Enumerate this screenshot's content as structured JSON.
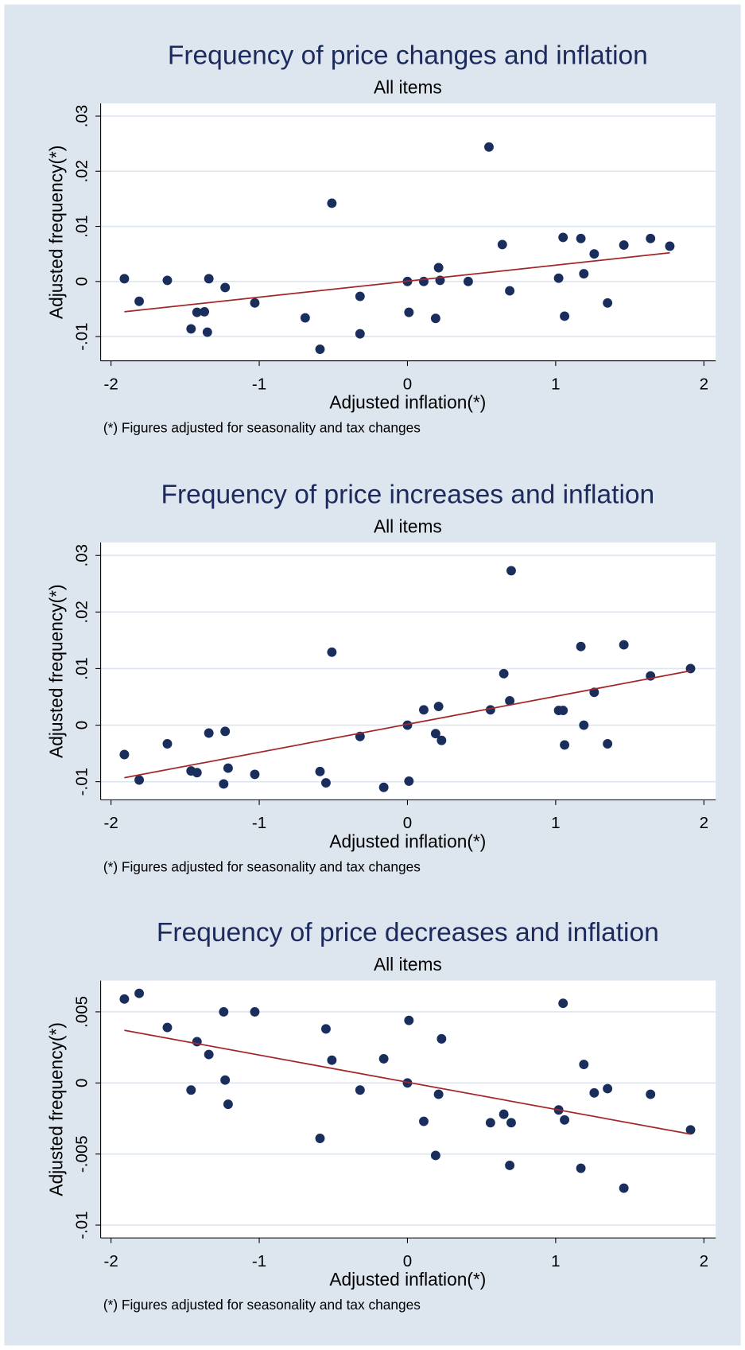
{
  "chart_data": [
    {
      "type": "scatter",
      "title": "Frequency of price changes and inflation",
      "subtitle": "All items",
      "xlabel": "Adjusted inflation(*)",
      "ylabel": "Adjusted frequency(*)",
      "note": "(*) Figures adjusted for seasonality and tax changes",
      "xlim": [
        -2.07,
        2.08
      ],
      "ylim": [
        -0.0144,
        0.0323
      ],
      "xticks": [
        -2,
        -1,
        0,
        1,
        2
      ],
      "yticks": [
        {
          "value": 0.03,
          "label": ".03"
        },
        {
          "value": 0.02,
          "label": ".02"
        },
        {
          "value": 0.01,
          "label": ".01"
        },
        0,
        {
          "value": -0.01,
          "label": "-.01"
        }
      ],
      "grid": true,
      "color": "#1a2e5e",
      "fit_color": "#a3272a",
      "x": [
        -1.91,
        -1.81,
        -1.62,
        -1.34,
        -1.23,
        -1.46,
        -1.42,
        -1.37,
        -1.35,
        -1.03,
        -0.69,
        -0.59,
        -0.51,
        -0.32,
        -0.32,
        0.0,
        0.01,
        0.11,
        0.19,
        0.21,
        0.22,
        0.41,
        0.55,
        0.64,
        0.69,
        1.02,
        1.05,
        1.06,
        1.17,
        1.19,
        1.26,
        1.35,
        1.46,
        1.64,
        1.77
      ],
      "values": [
        0.0005,
        -0.0036,
        0.0002,
        0.0005,
        -0.0011,
        -0.0086,
        -0.0056,
        -0.0055,
        -0.0092,
        -0.0039,
        -0.0066,
        -0.0123,
        0.0142,
        -0.0027,
        -0.0095,
        0.0,
        -0.0056,
        0.0,
        -0.0067,
        0.0025,
        0.0002,
        0.0,
        0.0244,
        0.0067,
        -0.0017,
        0.0006,
        0.008,
        -0.0063,
        0.0078,
        0.0014,
        0.005,
        -0.0039,
        0.0066,
        0.0078,
        0.0064
      ],
      "fit": {
        "x": [
          -1.91,
          1.77
        ],
        "values": [
          -0.0055,
          0.0052
        ]
      }
    },
    {
      "type": "scatter",
      "title": "Frequency of price increases and inflation",
      "subtitle": "All items",
      "xlabel": "Adjusted inflation(*)",
      "ylabel": "Adjusted frequency(*)",
      "note": "(*) Figures adjusted for seasonality and tax changes",
      "xlim": [
        -2.07,
        2.08
      ],
      "ylim": [
        -0.0132,
        0.0323
      ],
      "xticks": [
        -2,
        -1,
        0,
        1,
        2
      ],
      "yticks": [
        {
          "value": 0.03,
          "label": ".03"
        },
        {
          "value": 0.02,
          "label": ".02"
        },
        {
          "value": 0.01,
          "label": ".01"
        },
        0,
        {
          "value": -0.01,
          "label": "-.01"
        }
      ],
      "grid": true,
      "color": "#1a2e5e",
      "fit_color": "#a3272a",
      "x": [
        -1.91,
        -1.81,
        -1.62,
        -1.46,
        -1.42,
        -1.34,
        -1.24,
        -1.23,
        -1.21,
        -1.03,
        -0.59,
        -0.55,
        -0.51,
        -0.32,
        -0.16,
        0.0,
        0.01,
        0.11,
        0.19,
        0.21,
        0.23,
        0.56,
        0.65,
        0.69,
        0.7,
        1.02,
        1.05,
        1.06,
        1.17,
        1.19,
        1.26,
        1.35,
        1.46,
        1.64,
        1.91
      ],
      "values": [
        -0.0052,
        -0.0097,
        -0.0033,
        -0.0081,
        -0.0084,
        -0.0014,
        -0.0104,
        -0.0011,
        -0.0076,
        -0.0087,
        -0.0082,
        -0.0102,
        0.0129,
        -0.002,
        -0.011,
        0.0,
        -0.0099,
        0.0027,
        -0.0015,
        0.0033,
        -0.0027,
        0.0027,
        0.0091,
        0.0043,
        0.0273,
        0.0026,
        0.0026,
        -0.0035,
        0.0139,
        0.0,
        0.0058,
        -0.0033,
        0.0142,
        0.0087,
        0.01
      ],
      "fit": {
        "x": [
          -1.91,
          1.91
        ],
        "values": [
          -0.0093,
          0.0096
        ]
      }
    },
    {
      "type": "scatter",
      "title": "Frequency of price decreases and inflation",
      "subtitle": "All items",
      "xlabel": "Adjusted inflation(*)",
      "ylabel": "Adjusted frequency(*)",
      "note": "(*) Figures adjusted for seasonality and tax changes",
      "xlim": [
        -2.07,
        2.08
      ],
      "ylim": [
        -0.0109,
        0.0072
      ],
      "xticks": [
        -2,
        -1,
        0,
        1,
        2
      ],
      "yticks": [
        {
          "value": 0.005,
          "label": ".005"
        },
        0,
        {
          "value": -0.005,
          "label": "-.005"
        },
        {
          "value": -0.01,
          "label": "-.01"
        }
      ],
      "grid": true,
      "color": "#1a2e5e",
      "fit_color": "#a3272a",
      "x": [
        -1.91,
        -1.81,
        -1.62,
        -1.46,
        -1.42,
        -1.34,
        -1.24,
        -1.23,
        -1.21,
        -1.03,
        -0.59,
        -0.55,
        -0.51,
        -0.32,
        -0.16,
        0.01,
        0.0,
        0.11,
        0.19,
        0.21,
        0.23,
        0.56,
        0.65,
        0.69,
        0.7,
        1.02,
        1.05,
        1.06,
        1.17,
        1.19,
        1.26,
        1.35,
        1.46,
        1.64,
        1.91
      ],
      "values": [
        0.0059,
        0.0063,
        0.0039,
        -0.0005,
        0.0029,
        0.002,
        0.005,
        0.0002,
        -0.0015,
        0.005,
        -0.0039,
        0.0038,
        0.0016,
        -0.0005,
        0.0017,
        0.0044,
        0.0,
        -0.0027,
        -0.0051,
        -0.0008,
        0.0031,
        -0.0028,
        -0.0022,
        -0.0058,
        -0.0028,
        -0.0019,
        0.0056,
        -0.0026,
        -0.006,
        0.0013,
        -0.0007,
        -0.0004,
        -0.0074,
        -0.0008,
        -0.0033
      ],
      "fit": {
        "x": [
          -1.91,
          1.91
        ],
        "values": [
          0.0037,
          -0.0036
        ]
      }
    }
  ]
}
